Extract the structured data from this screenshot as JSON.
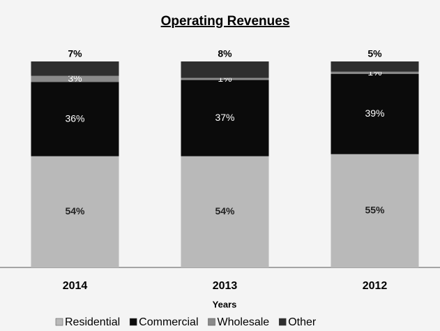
{
  "chart_data": {
    "type": "stacked_bar",
    "title": "Operating Revenues",
    "x_label": "Years",
    "categories": [
      "2014",
      "2013",
      "2012"
    ],
    "series": [
      {
        "name": "Residential",
        "color": "#b9b9b9",
        "values": [
          54,
          54,
          55
        ],
        "value_labels": [
          "54%",
          "54%",
          "55%"
        ]
      },
      {
        "name": "Commercial",
        "color": "#0b0b0b",
        "values": [
          36,
          37,
          39
        ],
        "value_labels": [
          "36%",
          "37%",
          "39%"
        ]
      },
      {
        "name": "Wholesale",
        "color": "#8a8a8a",
        "values": [
          3,
          1,
          1
        ],
        "value_labels": [
          "3%",
          "1%",
          "1%"
        ]
      },
      {
        "name": "Other",
        "color": "#2e2e2e",
        "values": [
          7,
          8,
          5
        ],
        "value_labels": [
          "7%",
          "8%",
          "5%"
        ]
      }
    ],
    "ylim": [
      0,
      100
    ],
    "legend": "bottom"
  }
}
